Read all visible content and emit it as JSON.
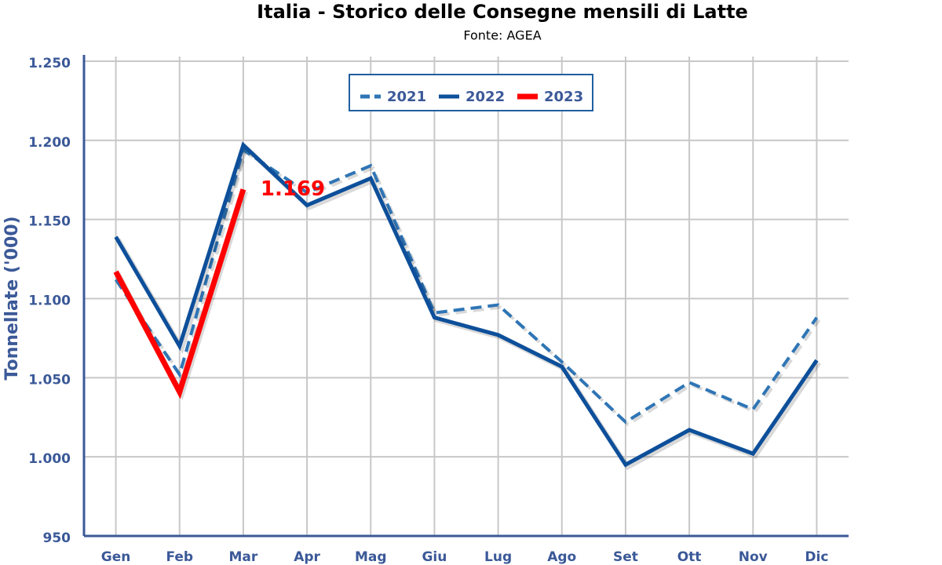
{
  "chart_data": {
    "type": "line",
    "title": "Italia - Storico delle Consegne mensili di Latte",
    "subtitle": "Fonte: AGEA",
    "y_label": "Tonnellate ('000)",
    "categories": [
      "Gen",
      "Feb",
      "Mar",
      "Apr",
      "Mag",
      "Giu",
      "Lug",
      "Ago",
      "Set",
      "Ott",
      "Nov",
      "Dic"
    ],
    "series": [
      {
        "name": "2021",
        "color": "#2f75b5",
        "dashed": true,
        "values": [
          1112,
          1052,
          1194,
          1167,
          1184,
          1091,
          1096,
          1060,
          1022,
          1047,
          1030,
          1088
        ]
      },
      {
        "name": "2022",
        "color": "#0d4f9a",
        "values": [
          1139,
          1070,
          1197,
          1159,
          1176,
          1088,
          1077,
          1057,
          995,
          1017,
          1002,
          1061
        ]
      },
      {
        "name": "2023",
        "color": "#ff0000",
        "values": [
          1117,
          1041,
          1169,
          null,
          null,
          null,
          null,
          null,
          null,
          null,
          null,
          null
        ],
        "value_labels": [
          null,
          null,
          "1.169",
          null,
          null,
          null,
          null,
          null,
          null,
          null,
          null,
          null
        ]
      }
    ],
    "ylim": [
      950,
      1250
    ],
    "yticks": [
      950,
      {
        "value": 1000,
        "label": "1.000"
      },
      {
        "value": 1050,
        "label": "1.050"
      },
      {
        "value": 1100,
        "label": "1.100"
      },
      {
        "value": 1150,
        "label": "1.150"
      },
      {
        "value": 1200,
        "label": "1.200"
      },
      {
        "value": 1250,
        "label": "1.250"
      }
    ],
    "grid": true,
    "legend": "top"
  }
}
